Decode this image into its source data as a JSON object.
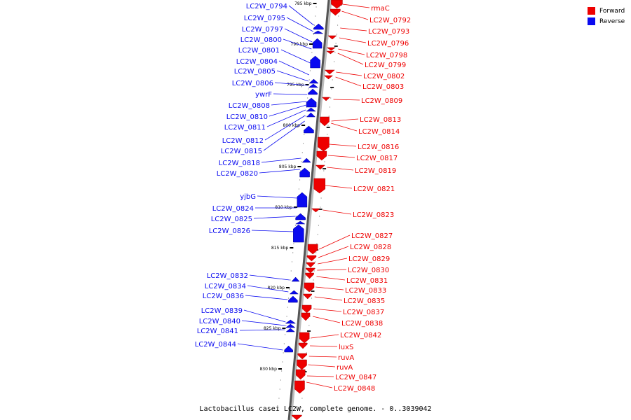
{
  "caption": "Lactobacillus casei LC2W, complete genome. - 0..3039042",
  "legend": [
    {
      "label": "Forward",
      "color": "#ee0000"
    },
    {
      "label": "Reverse",
      "color": "#0a0af0"
    }
  ],
  "ticks": [
    "785 kbp",
    "790 kbp",
    "795 kbp",
    "800 kbp",
    "805 kbp",
    "810 kbp",
    "815 kbp",
    "820 kbp",
    "825 kbp",
    "830 kbp"
  ],
  "reverse_labels": [
    "LC2W_0794",
    "LC2W_0795",
    "LC2W_0797",
    "LC2W_0800",
    "LC2W_0801",
    "LC2W_0804",
    "LC2W_0805",
    "LC2W_0806",
    "ywrF",
    "LC2W_0808",
    "LC2W_0810",
    "LC2W_0811",
    "LC2W_0812",
    "LC2W_0815",
    "LC2W_0818",
    "LC2W_0820",
    "yjbG",
    "LC2W_0824",
    "LC2W_0825",
    "LC2W_0826",
    "LC2W_0832",
    "LC2W_0834",
    "LC2W_0836",
    "LC2W_0839",
    "LC2W_0840",
    "LC2W_0841",
    "LC2W_0844"
  ],
  "forward_labels": [
    "rmaC",
    "LC2W_0792",
    "LC2W_0793",
    "LC2W_0796",
    "LC2W_0798",
    "LC2W_0799",
    "LC2W_0802",
    "LC2W_0803",
    "LC2W_0809",
    "LC2W_0813",
    "LC2W_0814",
    "LC2W_0816",
    "LC2W_0817",
    "LC2W_0819",
    "LC2W_0821",
    "LC2W_0823",
    "LC2W_0827",
    "LC2W_0828",
    "LC2W_0829",
    "LC2W_0830",
    "LC2W_0831",
    "LC2W_0833",
    "LC2W_0835",
    "LC2W_0837",
    "LC2W_0838",
    "LC2W_0842",
    "luxS",
    "ruvA",
    "ruvA",
    "LC2W_0847",
    "LC2W_0848"
  ]
}
